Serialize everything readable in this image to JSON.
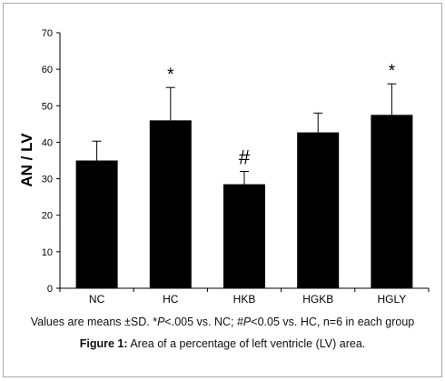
{
  "chart_data": {
    "type": "bar",
    "ylabel": "AN / LV",
    "ylim": [
      0,
      70
    ],
    "yticks": [
      0,
      10,
      20,
      30,
      40,
      50,
      60,
      70
    ],
    "categories": [
      "NC",
      "HC",
      "HKB",
      "HGKB",
      "HGLY"
    ],
    "values": [
      35,
      46,
      28.5,
      42.7,
      47.5
    ],
    "error_upper": [
      40.3,
      55,
      32,
      48,
      56
    ],
    "annotations": [
      "",
      "*",
      "#",
      "",
      "*"
    ],
    "bar_color": "#000000",
    "grid": false
  },
  "note": "Values are means ±SD. *P<.005 vs. NC; #P<0.05 vs. HC, n=6 in each group",
  "caption": {
    "label": "Figure 1:",
    "text": " Area of a percentage of left ventricle (LV) area."
  }
}
